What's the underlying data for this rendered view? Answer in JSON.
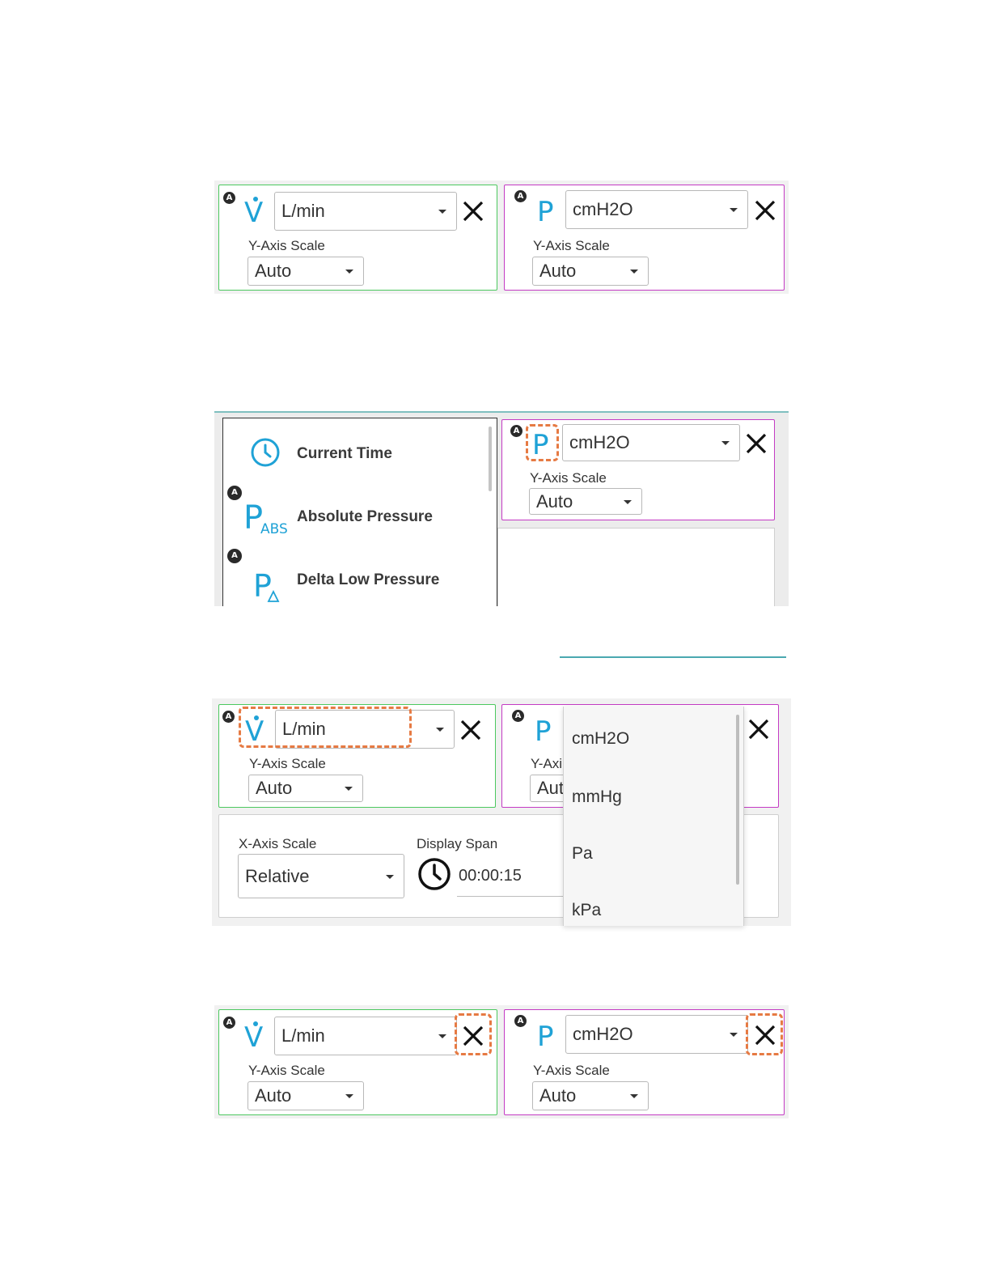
{
  "panels": [
    {
      "flow": {
        "symbol": "V",
        "unit": "L/min",
        "yaxis_label": "Y-Axis Scale",
        "yaxis_value": "Auto"
      },
      "pressure": {
        "symbol": "P",
        "unit": "cmH2O",
        "yaxis_label": "Y-Axis Scale",
        "yaxis_value": "Auto"
      }
    },
    {
      "menu": {
        "items": [
          {
            "label": "Current Time",
            "icon": "clock-icon"
          },
          {
            "label": "Absolute Pressure",
            "icon": "absolute-pressure-icon",
            "symbol": "P",
            "subscript": "ABS"
          },
          {
            "label": "Delta Low Pressure",
            "icon": "delta-pressure-icon",
            "symbol": "P"
          }
        ]
      },
      "pressure": {
        "symbol": "P",
        "unit": "cmH2O",
        "yaxis_label": "Y-Axis Scale",
        "yaxis_value": "Auto"
      }
    },
    {
      "flow": {
        "symbol": "V",
        "unit": "L/min",
        "yaxis_label": "Y-Axis Scale",
        "yaxis_value": "Auto"
      },
      "pressure": {
        "symbol": "P",
        "yaxis_label_partial": "Y-Axi",
        "yaxis_value_partial": "Aut"
      },
      "xaxis_label": "X-Axis Scale",
      "xaxis_value": "Relative",
      "display_span_label": "Display Span",
      "display_span_value": "00:00:15",
      "unit_options": [
        "cmH2O",
        "mmHg",
        "Pa",
        "kPa"
      ]
    },
    {
      "flow": {
        "symbol": "V",
        "unit": "L/min",
        "yaxis_label": "Y-Axis Scale",
        "yaxis_value": "Auto"
      },
      "pressure": {
        "symbol": "P",
        "unit": "cmH2O",
        "yaxis_label": "Y-Axis Scale",
        "yaxis_value": "Auto"
      }
    }
  ],
  "badge_letter": "A",
  "colors": {
    "flow_border": "#4cc85f",
    "pressure_border": "#c43bc4",
    "symbol": "#1fa2d6",
    "highlight": "#e67a43"
  }
}
